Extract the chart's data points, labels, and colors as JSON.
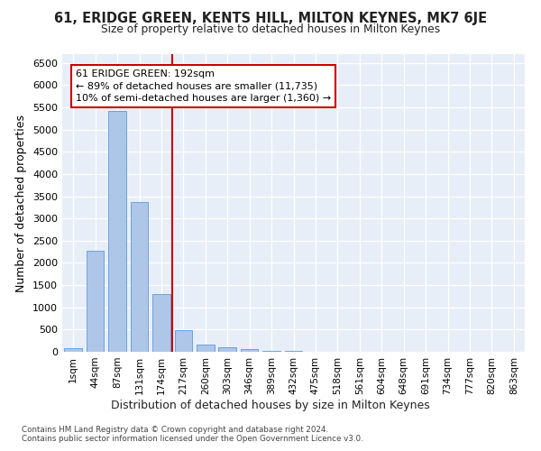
{
  "title": "61, ERIDGE GREEN, KENTS HILL, MILTON KEYNES, MK7 6JE",
  "subtitle": "Size of property relative to detached houses in Milton Keynes",
  "xlabel": "Distribution of detached houses by size in Milton Keynes",
  "ylabel": "Number of detached properties",
  "footnote1": "Contains HM Land Registry data © Crown copyright and database right 2024.",
  "footnote2": "Contains public sector information licensed under the Open Government Licence v3.0.",
  "bar_labels": [
    "1sqm",
    "44sqm",
    "87sqm",
    "131sqm",
    "174sqm",
    "217sqm",
    "260sqm",
    "303sqm",
    "346sqm",
    "389sqm",
    "432sqm",
    "475sqm",
    "518sqm",
    "561sqm",
    "604sqm",
    "648sqm",
    "691sqm",
    "734sqm",
    "777sqm",
    "820sqm",
    "863sqm"
  ],
  "bar_values": [
    75,
    2270,
    5430,
    3380,
    1290,
    480,
    170,
    100,
    55,
    28,
    12,
    8,
    5,
    3,
    2,
    1,
    1,
    0,
    0,
    0,
    0
  ],
  "bar_color": "#aec6e8",
  "bar_edge_color": "#5b9bd5",
  "bg_color": "#e8eef8",
  "grid_color": "#ffffff",
  "annotation_line1": "61 ERIDGE GREEN: 192sqm",
  "annotation_line2": "← 89% of detached houses are smaller (11,735)",
  "annotation_line3": "10% of semi-detached houses are larger (1,360) →",
  "vline_color": "#cc0000",
  "annotation_box_edgecolor": "#cc0000",
  "ylim_max": 6700,
  "yticks": [
    0,
    500,
    1000,
    1500,
    2000,
    2500,
    3000,
    3500,
    4000,
    4500,
    5000,
    5500,
    6000,
    6500
  ]
}
